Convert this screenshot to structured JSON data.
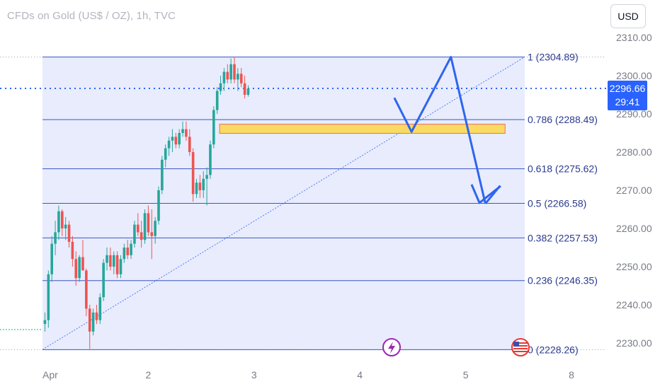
{
  "header": {
    "symbol_title": "CFDs on Gold (US$ / OZ), 1h, TVC",
    "currency_button": "USD"
  },
  "price_tag": {
    "last_price": "2296.66",
    "countdown": "29:41"
  },
  "colors": {
    "fib_zone": "#e8ecfd",
    "fib_line": "#3c56c4",
    "up_candle": "#26a69a",
    "down_candle": "#ef5350",
    "arrow": "#2f65ee",
    "trend_line": "#2962ff",
    "resistance_zone_fill": "#fcd94a",
    "resistance_zone_border": "#ef5350",
    "price_line": "#2962ff",
    "axis_text": "#787b86"
  },
  "chart_data": {
    "type": "candlestick",
    "title": "CFDs on Gold (US$ / OZ), 1h, TVC",
    "y_axis": {
      "range": [
        2224,
        2312
      ],
      "ticks": [
        2230,
        2240,
        2250,
        2260,
        2270,
        2280,
        2290,
        2300,
        2310
      ],
      "tick_labels": [
        "2230.00",
        "2240.00",
        "2250.00",
        "2260.00",
        "2270.00",
        "2280.00",
        "2290.00",
        "2300.00",
        "2310.00"
      ]
    },
    "x_axis": {
      "tick_labels": [
        "Apr",
        "2",
        "3",
        "4",
        "5",
        "8"
      ],
      "tick_positions": [
        0,
        21.5,
        43,
        64.5,
        86,
        107.5
      ]
    },
    "fibonacci_levels": [
      {
        "ratio": "1",
        "price": 2304.89,
        "label": "1 (2304.89)"
      },
      {
        "ratio": "0.786",
        "price": 2288.49,
        "label": "0.786 (2288.49)"
      },
      {
        "ratio": "0.618",
        "price": 2275.62,
        "label": "0.618 (2275.62)"
      },
      {
        "ratio": "0.5",
        "price": 2266.58,
        "label": "0.5 (2266.58)"
      },
      {
        "ratio": "0.382",
        "price": 2257.53,
        "label": "0.382 (2257.53)"
      },
      {
        "ratio": "0.236",
        "price": 2246.35,
        "label": "0.236 (2246.35)"
      },
      {
        "ratio": "0",
        "price": 2228.26,
        "label": "0 (2228.26)"
      }
    ],
    "fib_x_range": [
      0,
      98
    ],
    "last_price": 2296.66,
    "resistance_zone": {
      "x": [
        36,
        94
      ],
      "y": [
        2284.9,
        2287.3
      ]
    },
    "trend_line": {
      "from": [
        0,
        2228.3
      ],
      "to": [
        98,
        2304.9
      ]
    },
    "projection_path": [
      [
        71.5,
        2294.2
      ],
      [
        75,
        2285.3
      ],
      [
        83,
        2304.9
      ],
      [
        90,
        2266.5
      ],
      [
        93,
        2271.2
      ]
    ],
    "candles": [
      [
        2235.0,
        2238.0,
        2233.0,
        2236.0
      ],
      [
        2236.0,
        2249.0,
        2234.0,
        2248.0
      ],
      [
        2248.0,
        2258.0,
        2246.0,
        2256.0
      ],
      [
        2256.0,
        2262.0,
        2253.0,
        2259.0
      ],
      [
        2259.0,
        2266.0,
        2257.0,
        2264.5
      ],
      [
        2264.5,
        2265.0,
        2258.0,
        2260.0
      ],
      [
        2260.0,
        2263.0,
        2257.0,
        2261.0
      ],
      [
        2261.0,
        2262.0,
        2255.0,
        2256.5
      ],
      [
        2256.5,
        2258.0,
        2250.0,
        2252.0
      ],
      [
        2252.0,
        2254.0,
        2245.0,
        2247.0
      ],
      [
        2247.0,
        2253.0,
        2246.0,
        2252.5
      ],
      [
        2252.5,
        2257.0,
        2249.0,
        2249.0
      ],
      [
        2249.0,
        2249.5,
        2237.0,
        2239.0
      ],
      [
        2239.0,
        2240.0,
        2228.5,
        2233.0
      ],
      [
        2233.0,
        2239.0,
        2232.0,
        2238.0
      ],
      [
        2238.0,
        2240.0,
        2235.0,
        2236.0
      ],
      [
        2236.0,
        2243.0,
        2235.0,
        2242.0
      ],
      [
        2242.0,
        2252.0,
        2241.0,
        2251.0
      ],
      [
        2251.0,
        2255.0,
        2249.0,
        2253.0
      ],
      [
        2253.0,
        2255.0,
        2249.0,
        2250.0
      ],
      [
        2250.0,
        2254.0,
        2248.0,
        2253.0
      ],
      [
        2253.0,
        2254.0,
        2247.0,
        2248.0
      ],
      [
        2248.0,
        2253.0,
        2247.0,
        2252.0
      ],
      [
        2252.0,
        2256.0,
        2251.0,
        2255.0
      ],
      [
        2255.0,
        2257.0,
        2252.0,
        2253.0
      ],
      [
        2253.0,
        2257.0,
        2252.0,
        2256.0
      ],
      [
        2256.0,
        2262.0,
        2255.0,
        2261.0
      ],
      [
        2261.0,
        2264.0,
        2258.0,
        2259.0
      ],
      [
        2259.0,
        2262.0,
        2255.0,
        2257.0
      ],
      [
        2257.0,
        2265.0,
        2256.0,
        2264.0
      ],
      [
        2264.0,
        2266.0,
        2258.0,
        2259.0
      ],
      [
        2259.0,
        2265.0,
        2252.0,
        2258.0
      ],
      [
        2258.0,
        2263.0,
        2256.0,
        2262.0
      ],
      [
        2262.0,
        2271.0,
        2261.0,
        2270.0
      ],
      [
        2270.0,
        2279.0,
        2269.0,
        2278.0
      ],
      [
        2278.0,
        2282.0,
        2276.0,
        2281.0
      ],
      [
        2281.0,
        2284.0,
        2279.0,
        2283.0
      ],
      [
        2283.0,
        2286.0,
        2280.0,
        2284.0
      ],
      [
        2284.0,
        2285.0,
        2281.0,
        2282.0
      ],
      [
        2282.0,
        2286.0,
        2281.0,
        2285.0
      ],
      [
        2285.0,
        2288.0,
        2284.0,
        2286.0
      ],
      [
        2286.0,
        2288.0,
        2283.0,
        2284.0
      ],
      [
        2284.0,
        2286.0,
        2279.0,
        2280.0
      ],
      [
        2280.0,
        2281.0,
        2267.0,
        2269.0
      ],
      [
        2269.0,
        2273.0,
        2268.0,
        2272.0
      ],
      [
        2272.0,
        2274.0,
        2268.0,
        2270.0
      ],
      [
        2270.0,
        2275.0,
        2268.0,
        2273.0
      ],
      [
        2273.0,
        2276.0,
        2266.0,
        2274.0
      ],
      [
        2274.0,
        2283.0,
        2273.0,
        2282.0
      ],
      [
        2282.0,
        2292.0,
        2281.0,
        2291.0
      ],
      [
        2291.0,
        2297.0,
        2290.0,
        2296.0
      ],
      [
        2296.0,
        2300.0,
        2295.0,
        2298.0
      ],
      [
        2298.0,
        2302.0,
        2296.0,
        2301.0
      ],
      [
        2301.0,
        2303.0,
        2298.0,
        2299.0
      ],
      [
        2299.0,
        2304.5,
        2298.0,
        2303.0
      ],
      [
        2303.0,
        2304.9,
        2298.0,
        2299.0
      ],
      [
        2299.0,
        2302.0,
        2296.0,
        2300.5
      ],
      [
        2300.5,
        2302.0,
        2297.0,
        2298.0
      ],
      [
        2298.0,
        2300.0,
        2294.0,
        2295.0
      ],
      [
        2295.0,
        2297.5,
        2294.5,
        2296.66
      ]
    ],
    "candle_x_step": 0.7,
    "candles_note_columns": [
      "open",
      "high",
      "low",
      "close"
    ]
  }
}
